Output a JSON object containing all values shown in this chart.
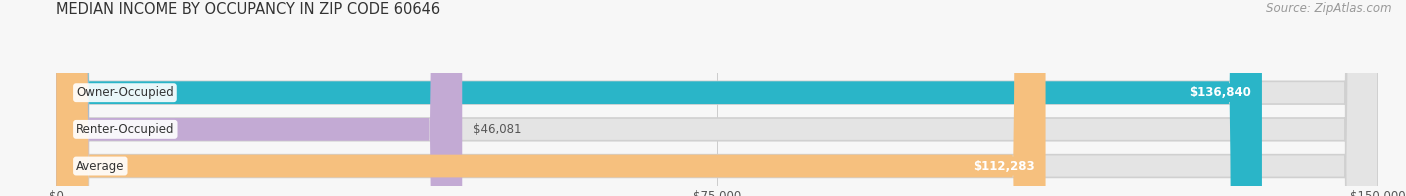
{
  "title": "MEDIAN INCOME BY OCCUPANCY IN ZIP CODE 60646",
  "source": "Source: ZipAtlas.com",
  "categories": [
    "Owner-Occupied",
    "Renter-Occupied",
    "Average"
  ],
  "values": [
    136840,
    46081,
    112283
  ],
  "bar_colors": [
    "#2ab5c8",
    "#c3aad4",
    "#f6c07e"
  ],
  "value_labels": [
    "$136,840",
    "$46,081",
    "$112,283"
  ],
  "value_inside": [
    true,
    false,
    true
  ],
  "xlim": [
    0,
    150000
  ],
  "xticks": [
    0,
    75000,
    150000
  ],
  "xtick_labels": [
    "$0",
    "$75,000",
    "$150,000"
  ],
  "bar_height": 0.62,
  "background_color": "#f7f7f7",
  "bar_bg_color": "#e4e4e4",
  "bar_border_color": "#d0d0d0",
  "title_fontsize": 10.5,
  "source_fontsize": 8.5,
  "label_fontsize": 8.5,
  "value_fontsize": 8.5
}
